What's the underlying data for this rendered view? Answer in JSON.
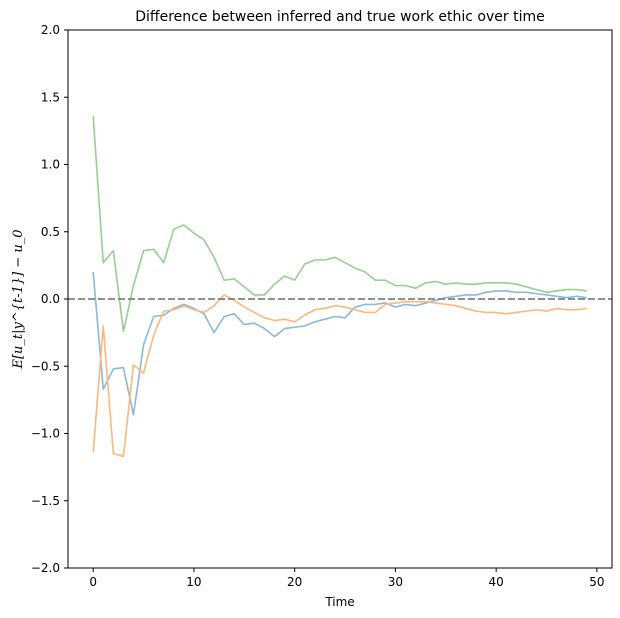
{
  "chart_data": {
    "type": "line",
    "title": "Difference between inferred and true work ethic over time",
    "xlabel": "Time",
    "ylabel": "E[u_t|y^{t-1}] − u_0",
    "xlim": [
      -2.5,
      51.5
    ],
    "ylim": [
      -2.0,
      2.0
    ],
    "xticks": [
      0,
      10,
      20,
      30,
      40,
      50
    ],
    "yticks": [
      -2.0,
      -1.5,
      -1.0,
      -0.5,
      0.0,
      0.5,
      1.0,
      1.5,
      2.0
    ],
    "ytick_labels": [
      "−2.0",
      "−1.5",
      "−1.0",
      "−0.5",
      "0.0",
      "0.5",
      "1.0",
      "1.5",
      "2.0"
    ],
    "grid": false,
    "reference_line": {
      "y": 0.0,
      "style": "dashed",
      "color": "#808080"
    },
    "series": [
      {
        "color": "#8ab8da",
        "x": [
          0,
          1,
          2,
          3,
          4,
          5,
          6,
          7,
          8,
          9,
          10,
          11,
          12,
          13,
          14,
          15,
          16,
          17,
          18,
          19,
          20,
          21,
          22,
          23,
          24,
          25,
          26,
          27,
          28,
          29,
          30,
          31,
          32,
          33,
          34,
          35,
          36,
          37,
          38,
          39,
          40,
          41,
          42,
          43,
          44,
          45,
          46,
          47,
          48,
          49
        ],
        "values": [
          0.2,
          -0.67,
          -0.52,
          -0.51,
          -0.86,
          -0.34,
          -0.13,
          -0.12,
          -0.07,
          -0.04,
          -0.07,
          -0.11,
          -0.25,
          -0.13,
          -0.11,
          -0.19,
          -0.18,
          -0.22,
          -0.28,
          -0.22,
          -0.21,
          -0.2,
          -0.17,
          -0.15,
          -0.13,
          -0.14,
          -0.06,
          -0.04,
          -0.04,
          -0.03,
          -0.06,
          -0.04,
          -0.05,
          -0.03,
          -0.01,
          0.01,
          0.02,
          0.03,
          0.03,
          0.05,
          0.06,
          0.06,
          0.05,
          0.05,
          0.04,
          0.03,
          0.02,
          0.01,
          0.02,
          0.01
        ]
      },
      {
        "color": "#ffb67a",
        "x": [
          0,
          1,
          2,
          3,
          4,
          5,
          6,
          7,
          8,
          9,
          10,
          11,
          12,
          13,
          14,
          15,
          16,
          17,
          18,
          19,
          20,
          21,
          22,
          23,
          24,
          25,
          26,
          27,
          28,
          29,
          30,
          31,
          32,
          33,
          34,
          35,
          36,
          37,
          38,
          39,
          40,
          41,
          42,
          43,
          44,
          45,
          46,
          47,
          48,
          49
        ],
        "values": [
          -1.14,
          -0.2,
          -1.15,
          -1.17,
          -0.49,
          -0.55,
          -0.27,
          -0.09,
          -0.08,
          -0.05,
          -0.08,
          -0.1,
          -0.05,
          0.03,
          -0.01,
          -0.06,
          -0.1,
          -0.14,
          -0.16,
          -0.15,
          -0.17,
          -0.12,
          -0.08,
          -0.07,
          -0.05,
          -0.06,
          -0.08,
          -0.1,
          -0.1,
          -0.04,
          -0.03,
          -0.02,
          -0.02,
          -0.02,
          -0.03,
          -0.04,
          -0.05,
          -0.07,
          -0.09,
          -0.1,
          -0.1,
          -0.11,
          -0.1,
          -0.09,
          -0.08,
          -0.09,
          -0.07,
          -0.08,
          -0.08,
          -0.07
        ]
      },
      {
        "color": "#96cf8f",
        "x": [
          0,
          1,
          2,
          3,
          4,
          5,
          6,
          7,
          8,
          9,
          10,
          11,
          12,
          13,
          14,
          15,
          16,
          17,
          18,
          19,
          20,
          21,
          22,
          23,
          24,
          25,
          26,
          27,
          28,
          29,
          30,
          31,
          32,
          33,
          34,
          35,
          36,
          37,
          38,
          39,
          40,
          41,
          42,
          43,
          44,
          45,
          46,
          47,
          48,
          49
        ],
        "values": [
          1.36,
          0.27,
          0.36,
          -0.24,
          0.1,
          0.36,
          0.37,
          0.27,
          0.52,
          0.55,
          0.49,
          0.44,
          0.31,
          0.14,
          0.15,
          0.09,
          0.03,
          0.03,
          0.11,
          0.17,
          0.14,
          0.26,
          0.29,
          0.29,
          0.31,
          0.27,
          0.23,
          0.2,
          0.14,
          0.14,
          0.1,
          0.1,
          0.08,
          0.12,
          0.13,
          0.11,
          0.12,
          0.11,
          0.11,
          0.12,
          0.12,
          0.12,
          0.11,
          0.09,
          0.07,
          0.05,
          0.06,
          0.07,
          0.07,
          0.06
        ]
      }
    ]
  }
}
